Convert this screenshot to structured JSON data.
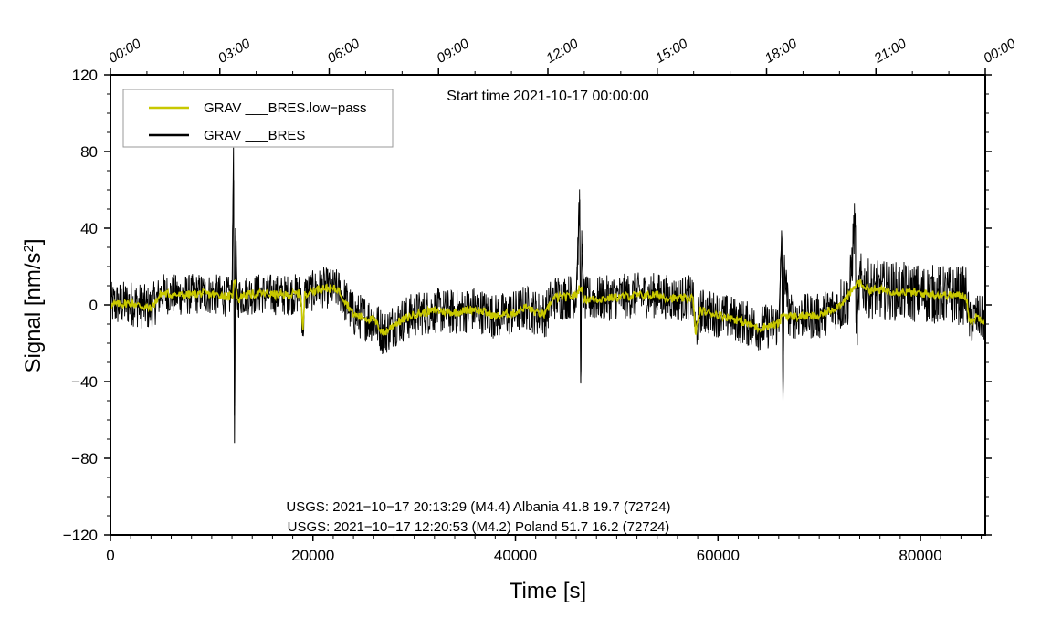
{
  "chart_data": {
    "type": "line",
    "title": "",
    "subtitle": "Start time 2021-10-17 00:00:00",
    "xlabel": "Time [s]",
    "ylabel_text": "Signal [nm/s",
    "ylabel_sup": "2",
    "ylabel_close": "]",
    "xlim": [
      0,
      86400
    ],
    "ylim": [
      -120,
      120
    ],
    "x_ticks": [
      0,
      20000,
      40000,
      60000,
      80000
    ],
    "x_tick_labels": [
      "0",
      "20000",
      "40000",
      "60000",
      "80000"
    ],
    "y_ticks": [
      -120,
      -80,
      -40,
      0,
      40,
      80,
      120
    ],
    "y_tick_labels": [
      "−120",
      "−80",
      "−40",
      "0",
      "40",
      "80",
      "120"
    ],
    "top_axis": {
      "ticks": [
        0,
        10800,
        21600,
        32400,
        43200,
        54000,
        64800,
        75600,
        86400
      ],
      "labels": [
        "00:00",
        "03:00",
        "06:00",
        "09:00",
        "12:00",
        "15:00",
        "18:00",
        "21:00",
        "00:00"
      ]
    },
    "legend_position": "top-left",
    "grid": false,
    "series": [
      {
        "name": "GRAV ___BRES.low−pass",
        "color": "#c8c800",
        "x": [
          0,
          2000,
          4000,
          5000,
          7000,
          9000,
          11000,
          12000,
          12300,
          12600,
          13000,
          15000,
          17000,
          18800,
          19000,
          19200,
          21000,
          22500,
          23200,
          24000,
          26000,
          27000,
          28000,
          30000,
          32000,
          34000,
          36000,
          38000,
          40000,
          41000,
          42000,
          43000,
          43500,
          44000,
          45000,
          46000,
          46400,
          46800,
          48000,
          50000,
          52000,
          54000,
          56000,
          57500,
          57800,
          58200,
          60000,
          62000,
          64000,
          66000,
          66400,
          67000,
          70000,
          72000,
          73000,
          73800,
          75000,
          78000,
          80000,
          83000,
          84500,
          84900,
          85500,
          86400
        ],
        "values": [
          0,
          1,
          -2,
          6,
          5,
          6,
          5,
          4,
          14,
          2,
          5,
          6,
          5,
          6,
          -15,
          6,
          9,
          8,
          2,
          -5,
          -8,
          -15,
          -10,
          -5,
          -3,
          -4,
          -2,
          -6,
          -4,
          -1,
          -4,
          -5,
          2,
          4,
          4,
          5,
          10,
          3,
          3,
          4,
          5,
          5,
          3,
          4,
          -15,
          -3,
          -5,
          -8,
          -12,
          -10,
          -5,
          -6,
          -6,
          0,
          5,
          12,
          8,
          7,
          6,
          5,
          5,
          -10,
          -6,
          -8
        ]
      },
      {
        "name": "GRAV ___BRES",
        "color": "#000000",
        "x": [
          0,
          2000,
          4000,
          5000,
          7000,
          9000,
          11000,
          12000,
          12150,
          12250,
          12350,
          12500,
          13000,
          15000,
          17000,
          18800,
          19000,
          19200,
          21000,
          22500,
          23200,
          24000,
          26000,
          27000,
          28000,
          30000,
          32000,
          34000,
          36000,
          38000,
          40000,
          41000,
          42000,
          43000,
          43500,
          44000,
          45000,
          46000,
          46350,
          46450,
          46550,
          46800,
          48000,
          50000,
          52000,
          54000,
          56000,
          57500,
          57800,
          58200,
          60000,
          62000,
          64000,
          66000,
          66300,
          66420,
          66550,
          67000,
          70000,
          72000,
          73000,
          73550,
          73650,
          74000,
          75000,
          78000,
          80000,
          83000,
          84500,
          84900,
          85500,
          86400
        ],
        "values": [
          0,
          1,
          -2,
          6,
          5,
          6,
          5,
          4,
          82,
          -72,
          40,
          3,
          5,
          6,
          5,
          6,
          -15,
          6,
          9,
          8,
          2,
          -5,
          -8,
          -15,
          -10,
          -5,
          -3,
          -4,
          -2,
          -6,
          -4,
          -1,
          -4,
          -5,
          2,
          4,
          4,
          5,
          55,
          -41,
          30,
          3,
          3,
          4,
          5,
          5,
          3,
          4,
          -15,
          -3,
          -5,
          -8,
          -12,
          -10,
          35,
          -50,
          20,
          -6,
          -6,
          0,
          5,
          48,
          -15,
          12,
          8,
          7,
          6,
          5,
          5,
          -10,
          -6,
          -8
        ],
        "noise_amplitude": 12
      }
    ],
    "annotations": [
      "USGS: 2021−10−17 20:13:29 (M4.4) Albania 41.8 19.7 (72724)",
      "USGS: 2021−10−17 12:20:53 (M4.2) Poland 51.7 16.2 (72724)"
    ]
  }
}
